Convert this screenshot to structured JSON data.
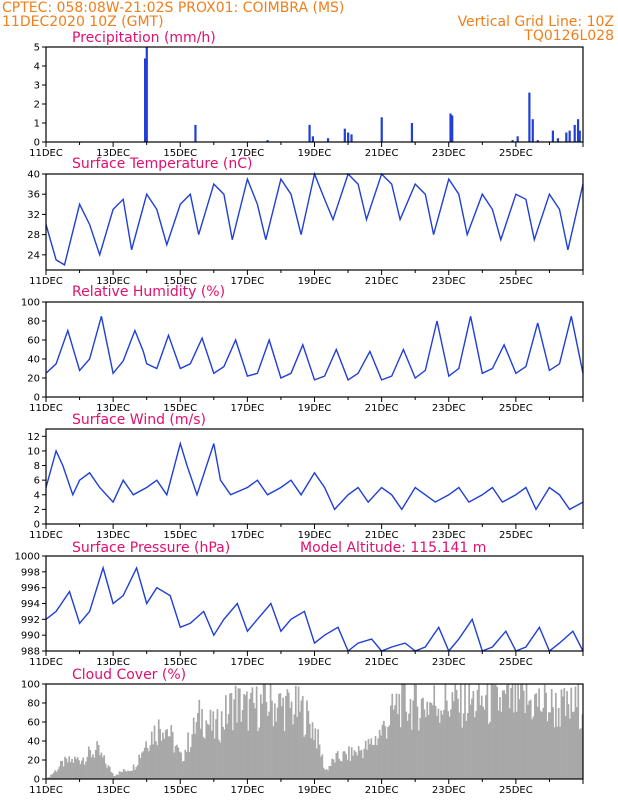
{
  "header": {
    "line1_left": "CPTEC:   058:08W-21:02S   PROX01: COIMBRA (MS)",
    "line2_left": "11DEC2020 10Z (GMT)",
    "line2_right": "Vertical Grid Line: 10Z",
    "line3_right": "TQ0126L028"
  },
  "colors": {
    "header": "#f07f1a",
    "title": "#e0106e",
    "series": "#1f3fd6",
    "cloud": "#a8a8a8"
  },
  "x_axis_labels": [
    "11DEC",
    "13DEC",
    "15DEC",
    "17DEC",
    "19DEC",
    "21DEC",
    "23DEC",
    "25DEC"
  ],
  "chart_data": [
    {
      "type": "bar",
      "title": "Precipitation (mm/h)",
      "ylim": [
        0,
        5
      ],
      "yticks": [
        "0",
        "1",
        "2",
        "3",
        "4",
        "5"
      ],
      "x_unit": "days since 11DEC2020 10Z",
      "events": [
        [
          2.95,
          4.4
        ],
        [
          3.0,
          5.0
        ],
        [
          4.45,
          0.9
        ],
        [
          6.6,
          0.1
        ],
        [
          7.85,
          0.9
        ],
        [
          7.95,
          0.3
        ],
        [
          8.4,
          0.2
        ],
        [
          8.9,
          0.7
        ],
        [
          9.0,
          0.5
        ],
        [
          9.1,
          0.4
        ],
        [
          10.0,
          1.3
        ],
        [
          10.9,
          1.0
        ],
        [
          12.05,
          1.5
        ],
        [
          12.1,
          1.4
        ],
        [
          13.9,
          0.1
        ],
        [
          14.05,
          0.3
        ],
        [
          14.4,
          2.6
        ],
        [
          14.5,
          1.2
        ],
        [
          14.65,
          0.1
        ],
        [
          15.1,
          0.6
        ],
        [
          15.25,
          0.2
        ],
        [
          15.5,
          0.5
        ],
        [
          15.6,
          0.6
        ],
        [
          15.75,
          0.9
        ],
        [
          15.85,
          1.2
        ],
        [
          15.9,
          0.6
        ]
      ]
    },
    {
      "type": "line",
      "title": "Surface Temperature (nC)",
      "ylim": [
        21,
        40
      ],
      "yticks": [
        "24",
        "28",
        "32",
        "36",
        "40"
      ],
      "ytick_values": [
        24,
        28,
        32,
        36,
        40
      ],
      "x": [
        0,
        0.3,
        0.55,
        1.0,
        1.3,
        1.6,
        2.0,
        2.3,
        2.55,
        3.0,
        3.3,
        3.6,
        4.0,
        4.3,
        4.55,
        5.0,
        5.3,
        5.55,
        6.0,
        6.3,
        6.55,
        7.0,
        7.3,
        7.6,
        8.0,
        8.3,
        8.55,
        9.0,
        9.3,
        9.55,
        10.0,
        10.3,
        10.55,
        11.0,
        11.3,
        11.55,
        12.0,
        12.3,
        12.55,
        13.0,
        13.3,
        13.55,
        14.0,
        14.3,
        14.55,
        15.0,
        15.3,
        15.55,
        16.0
      ],
      "values": [
        30,
        23,
        22,
        34,
        30,
        24,
        33,
        35,
        25,
        36,
        33,
        26,
        34,
        36,
        28,
        38,
        36,
        27,
        39,
        34,
        27,
        39,
        36,
        28,
        40,
        35,
        31,
        40,
        38,
        31,
        40,
        38,
        31,
        38,
        36,
        28,
        39,
        36,
        28,
        36,
        33,
        27,
        36,
        35,
        27,
        36,
        33,
        25,
        38
      ]
    },
    {
      "type": "line",
      "title": "Relative Humidity (%)",
      "ylim": [
        0,
        100
      ],
      "yticks": [
        "0",
        "20",
        "40",
        "60",
        "80",
        "100"
      ],
      "ytick_values": [
        0,
        20,
        40,
        60,
        80,
        100
      ],
      "x": [
        0,
        0.3,
        0.65,
        1.0,
        1.3,
        1.65,
        2.0,
        2.3,
        2.65,
        2.9,
        3.0,
        3.3,
        3.65,
        4.0,
        4.3,
        4.65,
        5.0,
        5.3,
        5.65,
        6.0,
        6.3,
        6.65,
        7.0,
        7.3,
        7.65,
        8.0,
        8.3,
        8.65,
        9.0,
        9.3,
        9.65,
        10.0,
        10.3,
        10.65,
        11.0,
        11.3,
        11.65,
        12.0,
        12.3,
        12.65,
        13.0,
        13.3,
        13.65,
        14.0,
        14.3,
        14.65,
        15.0,
        15.3,
        15.65,
        16.0
      ],
      "values": [
        25,
        35,
        70,
        28,
        40,
        85,
        25,
        38,
        70,
        48,
        35,
        30,
        65,
        30,
        35,
        62,
        25,
        32,
        60,
        22,
        25,
        60,
        20,
        25,
        55,
        18,
        22,
        50,
        18,
        25,
        48,
        18,
        22,
        50,
        20,
        28,
        80,
        22,
        30,
        85,
        25,
        30,
        55,
        25,
        32,
        78,
        28,
        35,
        85,
        25
      ]
    },
    {
      "type": "line",
      "title": "Surface Wind (m/s)",
      "ylim": [
        0,
        13
      ],
      "yticks": [
        "0",
        "2",
        "4",
        "6",
        "8",
        "10",
        "12"
      ],
      "ytick_values": [
        0,
        2,
        4,
        6,
        8,
        10,
        12
      ],
      "x": [
        0,
        0.3,
        0.5,
        0.8,
        1.0,
        1.3,
        1.6,
        2.0,
        2.3,
        2.6,
        3.0,
        3.3,
        3.6,
        4.0,
        4.2,
        4.5,
        5.0,
        5.2,
        5.5,
        6.0,
        6.3,
        6.6,
        7.0,
        7.3,
        7.6,
        8.0,
        8.3,
        8.6,
        9.0,
        9.3,
        9.6,
        10.0,
        10.3,
        10.6,
        11.0,
        11.3,
        11.6,
        12.0,
        12.3,
        12.6,
        13.0,
        13.3,
        13.6,
        14.0,
        14.3,
        14.6,
        15.0,
        15.3,
        15.6,
        16.0
      ],
      "values": [
        5,
        10,
        8,
        4,
        6,
        7,
        5,
        3,
        6,
        4,
        5,
        6,
        4,
        11,
        8,
        4,
        11,
        6,
        4,
        5,
        6,
        4,
        5,
        6,
        4,
        7,
        5,
        2,
        4,
        5,
        3,
        5,
        4,
        2,
        5,
        4,
        3,
        4,
        5,
        3,
        4,
        5,
        3,
        4,
        5,
        2,
        5,
        4,
        2,
        3
      ]
    },
    {
      "type": "line",
      "title": "Surface Pressure (hPa)",
      "annotation": "Model Altitude: 115.141  m",
      "ylim": [
        988,
        1000
      ],
      "yticks": [
        "988",
        "990",
        "992",
        "994",
        "996",
        "998",
        "1000"
      ],
      "ytick_values": [
        988,
        990,
        992,
        994,
        996,
        998,
        1000
      ],
      "x": [
        0,
        0.3,
        0.7,
        1.0,
        1.3,
        1.7,
        2.0,
        2.3,
        2.7,
        3.0,
        3.3,
        3.7,
        4.0,
        4.3,
        4.7,
        5.0,
        5.3,
        5.7,
        6.0,
        6.3,
        6.7,
        7.0,
        7.3,
        7.7,
        8.0,
        8.3,
        8.7,
        9.0,
        9.3,
        9.7,
        10.0,
        10.3,
        10.7,
        11.0,
        11.3,
        11.7,
        12.0,
        12.3,
        12.7,
        13.0,
        13.3,
        13.7,
        14.0,
        14.3,
        14.7,
        15.0,
        15.3,
        15.7,
        16.0
      ],
      "values": [
        992,
        993,
        995.5,
        991.5,
        993,
        998.5,
        994,
        995,
        998.5,
        994,
        996,
        995,
        991,
        991.5,
        993,
        990,
        992,
        994,
        990.5,
        992,
        994,
        990.5,
        992,
        993,
        989,
        990,
        991,
        988,
        989,
        989.5,
        988,
        988.5,
        989,
        988,
        988.5,
        991,
        988,
        989.5,
        992,
        988,
        988.5,
        990.5,
        988,
        988.5,
        991,
        988,
        989,
        990.5,
        988
      ]
    },
    {
      "type": "bar",
      "title": "Cloud Cover (%)",
      "ylim": [
        0,
        100
      ],
      "yticks": [
        "0",
        "20",
        "40",
        "60",
        "80",
        "100"
      ],
      "x_unit": "days since 11DEC2020 10Z",
      "profile": [
        [
          0,
          0
        ],
        [
          0.5,
          20
        ],
        [
          1.0,
          25
        ],
        [
          1.5,
          35
        ],
        [
          2.0,
          5
        ],
        [
          2.6,
          15
        ],
        [
          3.0,
          50
        ],
        [
          3.5,
          70
        ],
        [
          4.0,
          25
        ],
        [
          4.6,
          80
        ],
        [
          5.0,
          60
        ],
        [
          5.6,
          95
        ],
        [
          6.0,
          85
        ],
        [
          6.6,
          95
        ],
        [
          7.0,
          90
        ],
        [
          7.6,
          85
        ],
        [
          8.0,
          60
        ],
        [
          8.3,
          10
        ],
        [
          8.6,
          25
        ],
        [
          9.0,
          30
        ],
        [
          9.6,
          40
        ],
        [
          10.0,
          60
        ],
        [
          10.5,
          95
        ],
        [
          11.0,
          90
        ],
        [
          11.5,
          95
        ],
        [
          12.0,
          95
        ],
        [
          12.5,
          95
        ],
        [
          13.0,
          95
        ],
        [
          13.5,
          95
        ],
        [
          14.0,
          95
        ],
        [
          14.5,
          95
        ],
        [
          15.0,
          90
        ],
        [
          15.5,
          85
        ],
        [
          16.0,
          95
        ]
      ]
    }
  ]
}
